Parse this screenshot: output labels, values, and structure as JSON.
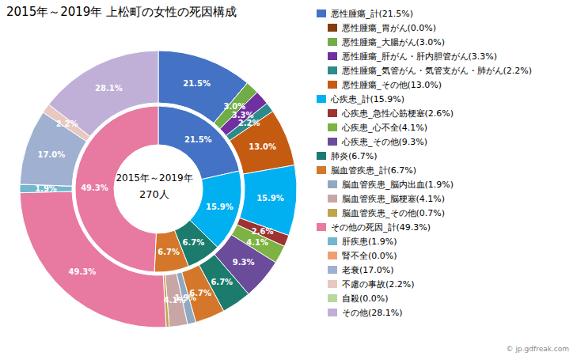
{
  "chart_data": {
    "type": "pie",
    "title": "2015年～2019年 上松町の女性の死因構成",
    "annotations": [
      "2015年～2019年",
      "270人",
      "© jp.gdfreak.com"
    ],
    "series": [
      {
        "categories": [
          "悪性腫瘍_計(21.5%)",
          "悪性腫瘍_胃がん(0.0%)",
          "悪性腫瘍_大腸がん(3.0%)",
          "悪性腫瘍_肝がん・肝内胆管がん(3.3%)",
          "悪性腫瘍_気管がん・気管支がん・肺がん(2.2%)",
          "悪性腫瘍_その他(13.0%)",
          "心疾患_計(15.9%)",
          "心疾患_急性心筋梗塞(2.6%)",
          "心疾患_心不全(4.1%)",
          "心疾患_その他(9.3%)",
          "肺炎(6.7%)",
          "脳血管疾患_計(6.7%)",
          "脳血管疾患_脳内出血(1.9%)",
          "脳血管疾患_脳梗塞(4.1%)",
          "脳血管疾患_その他(0.7%)",
          "その他の死因_計(49.3%)",
          "肝疾患(1.9%)",
          "腎不全(0.0%)",
          "老衰(17.0%)",
          "不慮の事故(2.2%)",
          "自殺(0.0%)",
          "その他(28.1%)"
        ],
        "values": [
          21.5,
          0.001,
          3.0,
          3.3,
          2.2,
          13.0,
          15.9,
          2.6,
          4.1,
          9.3,
          6.7,
          6.7,
          1.9,
          4.1,
          0.7,
          49.3,
          1.9,
          0.001,
          17.0,
          2.2,
          0.001,
          28.1
        ],
        "value_labels": [
          "21.5%",
          null,
          "3.0%",
          "3.3%",
          "2.2%",
          "13.0%",
          "15.9%",
          "2.6%",
          "4.1%",
          "9.3%",
          "6.7%",
          "6.7%",
          "1.9%",
          "4.1%",
          null,
          "49.3%",
          "1.9%",
          null,
          "17.0%",
          "2.2%",
          null,
          "28.1%"
        ],
        "colors": [
          "#4472C4",
          "#843C0C",
          "#70AD47",
          "#7030A0",
          "#2E8B8B",
          "#C55A11",
          "#00B0F0",
          "#9E3132",
          "#7CB342",
          "#6B4C9A",
          "#1B7C6E",
          "#D4772A",
          "#8EA9C1",
          "#C9A6A6",
          "#BFA44A",
          "#E879A0",
          "#72B7CE",
          "#F0A070",
          "#A0B0D0",
          "#E8C8C0",
          "#B8D8A0",
          "#C0B0D8"
        ]
      },
      {
        "categories": [
          "悪性腫瘍_計(21.5%)",
          "心疾患_計(15.9%)",
          "肺炎(6.7%)",
          "脳血管疾患_計(6.7%)",
          "その他の死因_計(49.3%)"
        ],
        "values": [
          21.5,
          15.9,
          6.7,
          6.7,
          49.3
        ],
        "value_labels": [
          "21.5%",
          "15.9%",
          "6.7%",
          "6.7%",
          "49.3%"
        ],
        "colors": [
          "#4472C4",
          "#00B0F0",
          "#1B7C6E",
          "#D4772A",
          "#E879A0"
        ]
      }
    ]
  }
}
